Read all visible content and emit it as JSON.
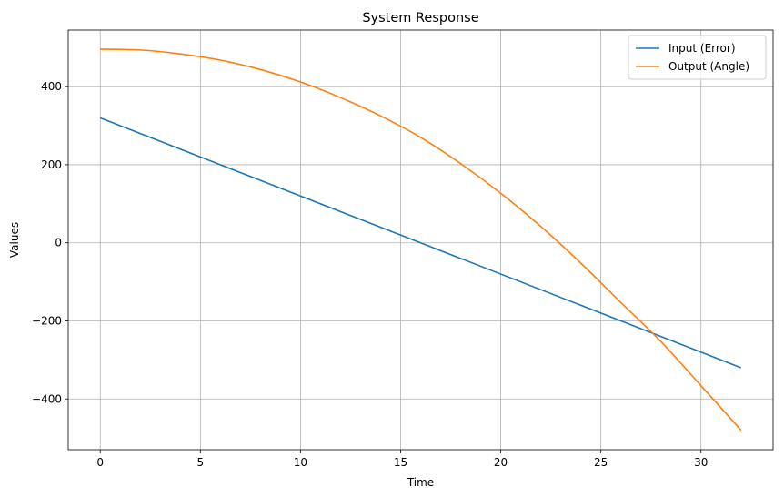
{
  "chart_data": {
    "type": "line",
    "title": "System Response",
    "xlabel": "Time",
    "ylabel": "Values",
    "xlim": [
      -1.6,
      33.6
    ],
    "ylim": [
      -530,
      545
    ],
    "xticks": [
      0,
      5,
      10,
      15,
      20,
      25,
      30
    ],
    "yticks": [
      -400,
      -200,
      0,
      200,
      400
    ],
    "ytick_labels": [
      "−400",
      "−200",
      "0",
      "200",
      "400"
    ],
    "grid": true,
    "legend_position": "top-right",
    "series": [
      {
        "name": "Input (Error)",
        "color": "#1f77b4",
        "x": [
          0,
          32
        ],
        "y": [
          320,
          -320
        ]
      },
      {
        "name": "Output (Angle)",
        "color": "#ff7f0e",
        "x": [
          0,
          2,
          4,
          6,
          8,
          10,
          12,
          14,
          16,
          18,
          20,
          22,
          24,
          26,
          28,
          30,
          32
        ],
        "y": [
          496,
          494,
          484,
          468,
          444,
          412,
          372,
          325,
          270,
          203,
          127,
          42,
          -52,
          -153,
          -253,
          -366,
          -480
        ]
      }
    ]
  }
}
